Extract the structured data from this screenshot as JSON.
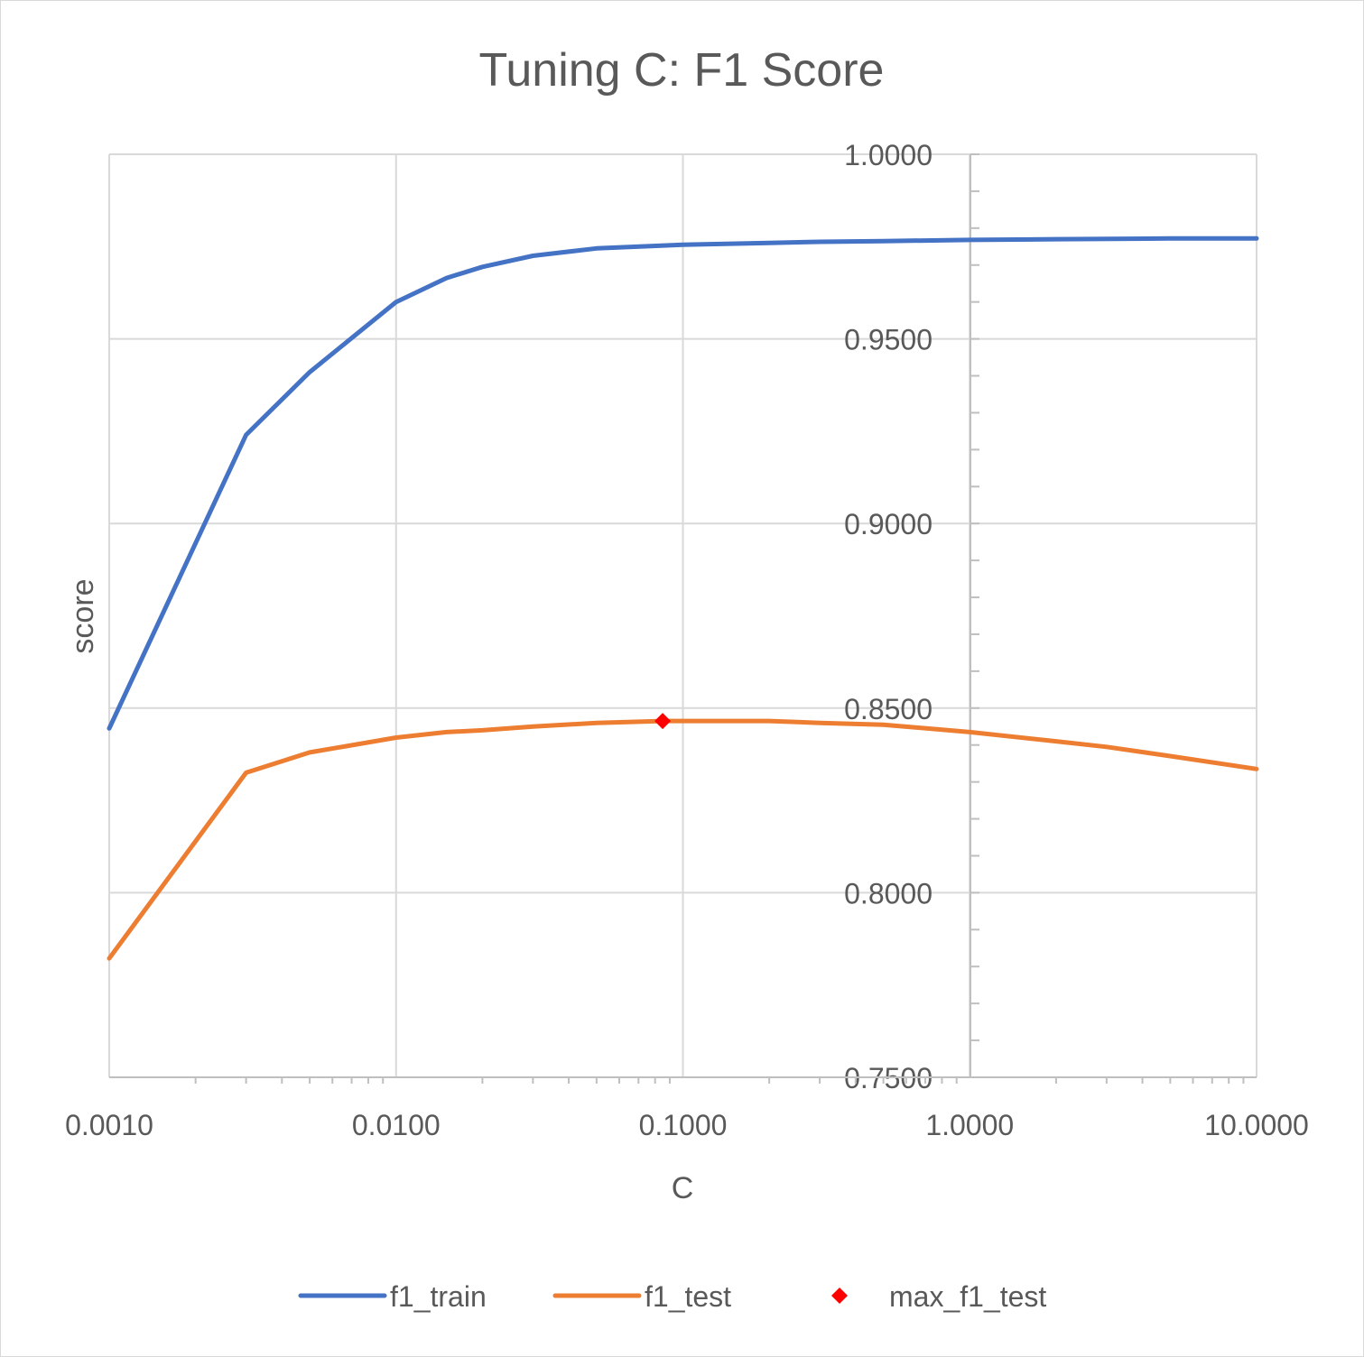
{
  "chart_data": {
    "type": "line",
    "title": "Tuning C: F1 Score",
    "xlabel": "C",
    "ylabel": "score",
    "x_scale": "log",
    "xlim": [
      0.001,
      10
    ],
    "ylim": [
      0.75,
      1.0
    ],
    "x_ticks": [
      "0.0010",
      "0.0100",
      "0.1000",
      "1.0000",
      "10.0000"
    ],
    "y_ticks": [
      "0.7500",
      "0.8000",
      "0.8500",
      "0.9000",
      "0.9500",
      "1.0000"
    ],
    "grid": true,
    "legend_position": "bottom",
    "series": [
      {
        "name": "f1_train",
        "color": "#4472c4",
        "kind": "line",
        "x": [
          0.001,
          0.003,
          0.005,
          0.01,
          0.015,
          0.02,
          0.03,
          0.05,
          0.1,
          0.2,
          0.3,
          0.5,
          1,
          2,
          5,
          10
        ],
        "y": [
          0.8445,
          0.924,
          0.941,
          0.96,
          0.9665,
          0.9695,
          0.9725,
          0.9745,
          0.9755,
          0.976,
          0.9763,
          0.9765,
          0.9768,
          0.977,
          0.9772,
          0.9772
        ]
      },
      {
        "name": "f1_test",
        "color": "#ed7d31",
        "kind": "line",
        "x": [
          0.001,
          0.003,
          0.005,
          0.01,
          0.015,
          0.02,
          0.03,
          0.05,
          0.085,
          0.1,
          0.2,
          0.3,
          0.5,
          1,
          2,
          3,
          5,
          10
        ],
        "y": [
          0.7822,
          0.8325,
          0.838,
          0.842,
          0.8435,
          0.844,
          0.845,
          0.846,
          0.8465,
          0.8465,
          0.8465,
          0.846,
          0.8455,
          0.8435,
          0.841,
          0.8395,
          0.837,
          0.8335
        ]
      },
      {
        "name": "max_f1_test",
        "color": "#ff0000",
        "kind": "marker",
        "x": [
          0.085
        ],
        "y": [
          0.8465
        ]
      }
    ]
  }
}
